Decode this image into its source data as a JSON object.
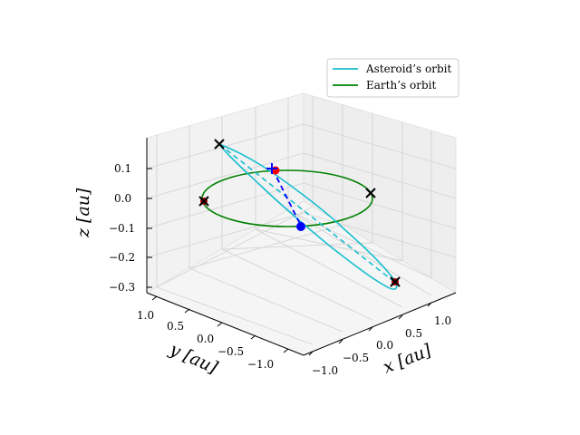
{
  "chart_data": {
    "type": "line3d",
    "title": "",
    "axes": {
      "x": {
        "label": "x [au]",
        "ticks": [
          "−1.0",
          "−0.5",
          "0.0",
          "0.5",
          "1.0"
        ]
      },
      "y": {
        "label": "y [au]",
        "ticks": [
          "1.0",
          "0.5",
          "0.0",
          "−0.5",
          "−1.0"
        ]
      },
      "z": {
        "label": "z [au]",
        "ticks": [
          "0.1",
          "0.0",
          "−0.1",
          "−0.2",
          "−0.3"
        ]
      }
    },
    "grid": true,
    "legend": {
      "placement": "top-right",
      "entries": [
        {
          "label": "Asteroid’s orbit",
          "color": "#17becf"
        },
        {
          "label": "Earth’s orbit",
          "color": "#008000"
        }
      ]
    },
    "colors": {
      "asteroid": "#17becf",
      "earth": "#008000",
      "transfer": "#0000ff",
      "red_marker": "#ff0000",
      "black_marker": "#000000"
    },
    "markers": [
      {
        "kind": "x",
        "color": "black",
        "note": "asteroid orbit point (upper-left)"
      },
      {
        "kind": "x",
        "color": "black",
        "note": "earth orbit point (right)"
      },
      {
        "kind": "x",
        "color": "black-red",
        "note": "earth orbit point (left)"
      },
      {
        "kind": "x",
        "color": "black-red",
        "note": "asteroid orbit point (lower-right)"
      },
      {
        "kind": "dot",
        "color": "red",
        "note": "start on asteroid orbit"
      },
      {
        "kind": "plus",
        "color": "blue",
        "note": "transfer start"
      },
      {
        "kind": "dot",
        "color": "blue",
        "note": "transfer end on earth orbit"
      }
    ]
  }
}
